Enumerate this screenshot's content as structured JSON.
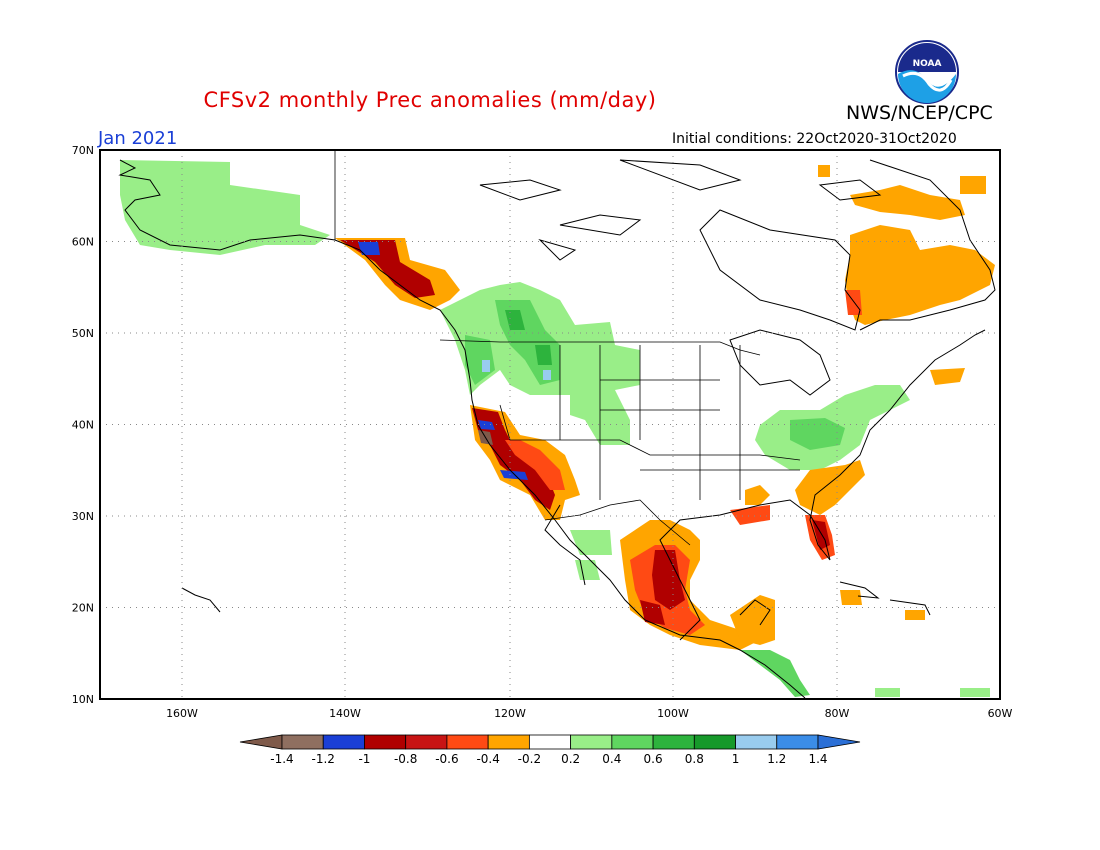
{
  "title": "CFSv2 monthly Prec anomalies (mm/day)",
  "agency": "NWS/NCEP/CPC",
  "logo_text": "NOAA",
  "month": "Jan 2021",
  "initial_conditions": "Initial conditions: 22Oct2020-31Oct2020",
  "lat_labels": [
    "70N",
    "60N",
    "50N",
    "40N",
    "30N",
    "20N",
    "10N"
  ],
  "lon_labels": [
    "160W",
    "140W",
    "120W",
    "100W",
    "80W",
    "60W"
  ],
  "colorbar": {
    "labels": [
      "-1.4",
      "-1.2",
      "-1",
      "-0.8",
      "-0.6",
      "-0.4",
      "-0.2",
      "0.2",
      "0.4",
      "0.6",
      "0.8",
      "1",
      "1.2",
      "1.4"
    ],
    "colors": [
      "#7f5a4a",
      "#8f6f60",
      "#1a3fd6",
      "#b00000",
      "#c81414",
      "#ff4a14",
      "#ffa500",
      "#ffffff",
      "#99ee88",
      "#5fd660",
      "#2db33d",
      "#16992a",
      "#99ccee",
      "#3b8de8",
      "#2b6fd6"
    ]
  },
  "anomaly_regions": [
    {
      "name": "alaska-wet",
      "level": "0.4"
    },
    {
      "name": "pacific-nw-wet",
      "level": "0.4"
    },
    {
      "name": "northern-rockies-wet",
      "level": "0.4"
    },
    {
      "name": "ohio-valley-wet",
      "level": "0.4"
    },
    {
      "name": "california-dry",
      "level": "-0.8"
    },
    {
      "name": "southwest-dry",
      "level": "-0.4"
    },
    {
      "name": "mexico-dry",
      "level": "-0.6"
    },
    {
      "name": "florida-dry",
      "level": "-0.6"
    },
    {
      "name": "southeast-dry",
      "level": "-0.4"
    },
    {
      "name": "labrador-dry",
      "level": "-0.4"
    },
    {
      "name": "se-alaska-dry",
      "level": "-0.8"
    }
  ]
}
